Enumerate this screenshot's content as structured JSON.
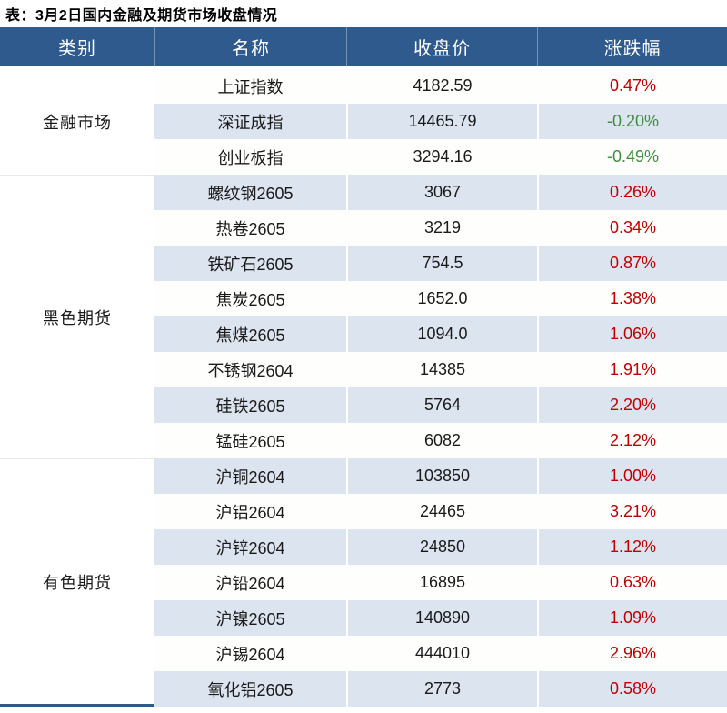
{
  "title": "表：3月2日国内金融及期货市场收盘情况",
  "colors": {
    "header_bg": "#2F5A8D",
    "header_text": "#FFFFFF",
    "stripe_bg": "#DCE4EF",
    "row_bg": "#FEFEFD",
    "up_color": "#C00000",
    "down_color": "#3F8E3F",
    "text_color": "#1A1A1A",
    "bottom_border": "#2F5A8D"
  },
  "chart_data": {
    "type": "table",
    "title": "表：3月2日国内金融及期货市场收盘情况",
    "columns": [
      "类别",
      "名称",
      "收盘价",
      "涨跌幅"
    ],
    "legend_position": "none",
    "grid": false,
    "groups": [
      {
        "category": "金融市场",
        "rows": [
          {
            "name": "上证指数",
            "close": "4182.59",
            "change": "0.47%"
          },
          {
            "name": "深证成指",
            "close": "14465.79",
            "change": "-0.20%"
          },
          {
            "name": "创业板指",
            "close": "3294.16",
            "change": "-0.49%"
          }
        ]
      },
      {
        "category": "黑色期货",
        "rows": [
          {
            "name": "螺纹钢2605",
            "close": "3067",
            "change": "0.26%"
          },
          {
            "name": "热卷2605",
            "close": "3219",
            "change": "0.34%"
          },
          {
            "name": "铁矿石2605",
            "close": "754.5",
            "change": "0.87%"
          },
          {
            "name": "焦炭2605",
            "close": "1652.0",
            "change": "1.38%"
          },
          {
            "name": "焦煤2605",
            "close": "1094.0",
            "change": "1.06%"
          },
          {
            "name": "不锈钢2604",
            "close": "14385",
            "change": "1.91%"
          },
          {
            "name": "硅铁2605",
            "close": "5764",
            "change": "2.20%"
          },
          {
            "name": "锰硅2605",
            "close": "6082",
            "change": "2.12%"
          }
        ]
      },
      {
        "category": "有色期货",
        "rows": [
          {
            "name": "沪铜2604",
            "close": "103850",
            "change": "1.00%"
          },
          {
            "name": "沪铝2604",
            "close": "24465",
            "change": "3.21%"
          },
          {
            "name": "沪锌2604",
            "close": "24850",
            "change": "1.12%"
          },
          {
            "name": "沪铅2604",
            "close": "16895",
            "change": "0.63%"
          },
          {
            "name": "沪镍2605",
            "close": "140890",
            "change": "1.09%"
          },
          {
            "name": "沪锡2604",
            "close": "444010",
            "change": "2.96%"
          },
          {
            "name": "氧化铝2605",
            "close": "2773",
            "change": "0.58%"
          }
        ]
      }
    ]
  }
}
